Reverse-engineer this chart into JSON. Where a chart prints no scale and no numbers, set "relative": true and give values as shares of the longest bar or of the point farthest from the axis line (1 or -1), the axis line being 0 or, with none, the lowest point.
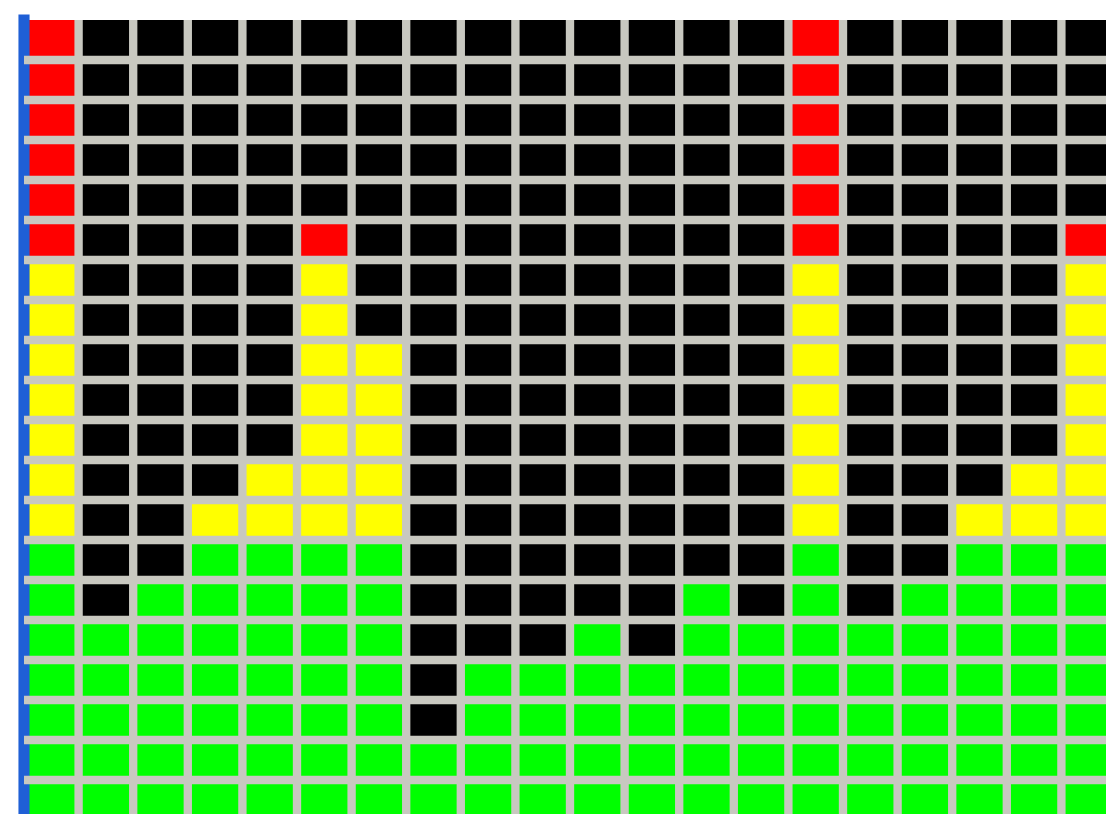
{
  "chart_data": {
    "type": "bar",
    "relative": true,
    "stacked": true,
    "grid": true,
    "categories": [
      null,
      null,
      null,
      null,
      null,
      null,
      null,
      null,
      null,
      null,
      null,
      null,
      null,
      null,
      null,
      null,
      null,
      null,
      null,
      null
    ],
    "series": [
      {
        "color": "#00ff00",
        "values": [
          0.35,
          0.25,
          0.3,
          0.35,
          0.35,
          0.35,
          0.35,
          0.1,
          0.2,
          0.2,
          0.25,
          0.2,
          0.3,
          0.25,
          0.35,
          0.25,
          0.3,
          0.35,
          0.35,
          0.35
        ]
      },
      {
        "color": "#ffff00",
        "values": [
          0.35,
          0,
          0,
          0.05,
          0.1,
          0.35,
          0.25,
          0,
          0,
          0,
          0,
          0,
          0,
          0,
          0.35,
          0,
          0,
          0.05,
          0.1,
          0.35
        ]
      },
      {
        "color": "#ff0000",
        "values": [
          0.3,
          0,
          0,
          0,
          0,
          0.05,
          0,
          0,
          0,
          0,
          0,
          0,
          0,
          0,
          0.3,
          0,
          0,
          0,
          0,
          0.05
        ]
      }
    ]
  }
}
